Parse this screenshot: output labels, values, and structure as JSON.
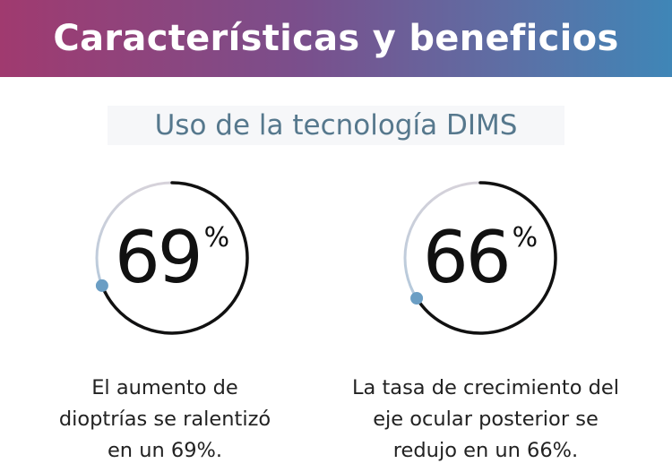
{
  "header": {
    "title": "Características y beneficios"
  },
  "subtitle": "Uso de la tecnología DIMS",
  "stats": [
    {
      "value": "69",
      "unit": "%",
      "percent": 69,
      "caption_lines": [
        "El aumento de",
        "dioptrías se ralentizó",
        "en un 69%."
      ]
    },
    {
      "value": "66",
      "unit": "%",
      "percent": 66,
      "caption_lines": [
        "La tasa de crecimiento del",
        "eje ocular posterior se",
        "redujo en un 66%."
      ]
    }
  ],
  "colors": {
    "banner_start": "#a03a6f",
    "banner_end": "#3f86b7",
    "subtitle_text": "#56788d",
    "ring_track": "#d9d9de",
    "ring_progress": "#111111",
    "ring_end_dot": "#6b9ec4"
  }
}
